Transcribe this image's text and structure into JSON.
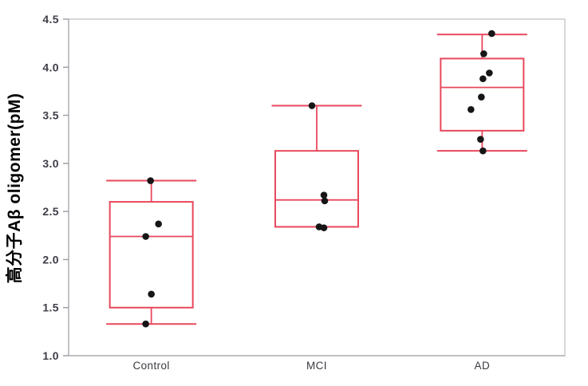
{
  "chart_data": {
    "type": "box",
    "title": "",
    "xlabel": "",
    "ylabel": "高分子Aβ oligomer(pM)",
    "ylim": [
      1.0,
      4.5
    ],
    "ytick_step": 0.5,
    "yticks": [
      4.5,
      4.0,
      3.5,
      3.0,
      2.5,
      2.0,
      1.5,
      1.0
    ],
    "categories": [
      "Control",
      "MCI",
      "AD"
    ],
    "grid": false,
    "legend": null,
    "colors": {
      "box_stroke": "#e8485c",
      "point_fill": "#161616",
      "frame": "#c7c7cb",
      "axis": "#b3b3b8",
      "tick_mark": "#9a9aa0",
      "tick_text": "#3e3e48",
      "category_text": "#3a3a42"
    },
    "series": [
      {
        "name": "Control",
        "whisker_low": 1.33,
        "q1": 1.5,
        "median": 2.24,
        "q3": 2.6,
        "whisker_high": 2.82,
        "points": [
          {
            "value": 2.82,
            "dx": -1
          },
          {
            "value": 2.37,
            "dx": 9
          },
          {
            "value": 2.24,
            "dx": -7
          },
          {
            "value": 1.64,
            "dx": 0
          },
          {
            "value": 1.33,
            "dx": -7
          }
        ]
      },
      {
        "name": "MCI",
        "whisker_low": 2.34,
        "q1": 2.34,
        "median": 2.62,
        "q3": 3.13,
        "whisker_high": 3.6,
        "points": [
          {
            "value": 3.6,
            "dx": -6
          },
          {
            "value": 2.67,
            "dx": 9
          },
          {
            "value": 2.61,
            "dx": 10
          },
          {
            "value": 2.34,
            "dx": 3
          },
          {
            "value": 2.33,
            "dx": 9
          }
        ]
      },
      {
        "name": "AD",
        "whisker_low": 3.13,
        "q1": 3.34,
        "median": 3.79,
        "q3": 4.09,
        "whisker_high": 4.34,
        "points": [
          {
            "value": 4.35,
            "dx": 12
          },
          {
            "value": 4.14,
            "dx": 2
          },
          {
            "value": 3.94,
            "dx": 9
          },
          {
            "value": 3.88,
            "dx": 1
          },
          {
            "value": 3.69,
            "dx": -1
          },
          {
            "value": 3.56,
            "dx": -14
          },
          {
            "value": 3.25,
            "dx": -2
          },
          {
            "value": 3.13,
            "dx": 1
          }
        ]
      }
    ]
  }
}
